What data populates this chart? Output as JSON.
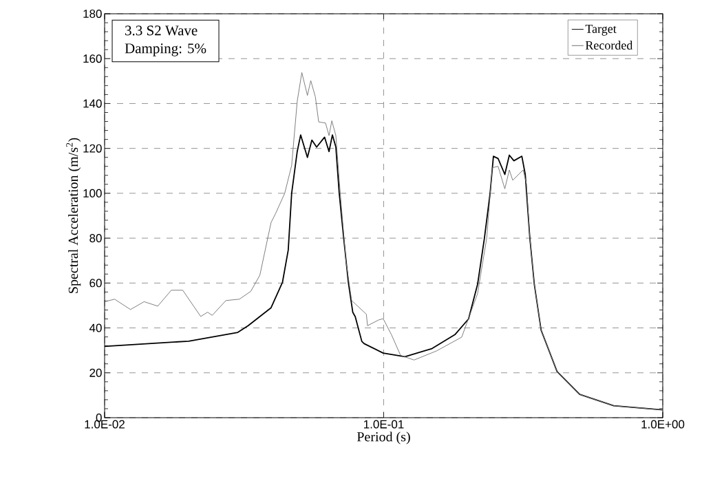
{
  "chart_data": {
    "type": "line",
    "xlabel": "Period (s)",
    "ylabel": "Spectral Acceleration (m/s$^{2}$)",
    "annotations": [
      "3.3 S2 Wave",
      "Damping: 5%"
    ],
    "log": "x",
    "grid": true,
    "legend": "top right",
    "xlim": [
      0.01,
      1
    ],
    "ylim": [
      0,
      180
    ],
    "xticks": [
      {
        "value": 0.01,
        "label": "1.0E-02"
      },
      {
        "value": 0.1,
        "label": "1.0E-01"
      },
      {
        "value": 1,
        "label": "1.0E+00"
      }
    ],
    "yticks": [
      0,
      20,
      40,
      60,
      80,
      100,
      120,
      140,
      160,
      180
    ],
    "series": [
      {
        "name": "Target",
        "color": "#000000",
        "x": [
          0.01,
          0.02,
          0.03,
          0.0327,
          0.0395,
          0.0434,
          0.0455,
          0.0468,
          0.049,
          0.0504,
          0.0533,
          0.0553,
          0.0575,
          0.0614,
          0.0637,
          0.0655,
          0.0674,
          0.0693,
          0.0719,
          0.0747,
          0.0775,
          0.0791,
          0.0835,
          0.0851,
          0.0996,
          0.1192,
          0.149,
          0.18,
          0.2014,
          0.217,
          0.2296,
          0.2406,
          0.2473,
          0.257,
          0.2717,
          0.282,
          0.2928,
          0.3127,
          0.3216,
          0.334,
          0.3466,
          0.3666,
          0.418,
          0.504,
          0.667,
          1.0
        ],
        "values": [
          31.8,
          34.1,
          38,
          41,
          49,
          60.4,
          74.7,
          100,
          118.6,
          126,
          116,
          123.7,
          120.6,
          125,
          118.6,
          126,
          120.6,
          100,
          80,
          60.4,
          47,
          45,
          34,
          33,
          28.8,
          27.2,
          30.8,
          37,
          44,
          59.4,
          80,
          100,
          116.5,
          115.5,
          108.4,
          117,
          114.5,
          116.5,
          108.4,
          80,
          59.4,
          39,
          20.6,
          10.4,
          5.3,
          3.5
        ]
      },
      {
        "name": "Recorded",
        "color": "#707070",
        "x": [
          0.01,
          0.01086,
          0.01238,
          0.01385,
          0.0155,
          0.01734,
          0.01905,
          0.0221,
          0.02339,
          0.0243,
          0.0272,
          0.0304,
          0.0334,
          0.036,
          0.0395,
          0.041,
          0.0442,
          0.0468,
          0.049,
          0.0509,
          0.0533,
          0.0548,
          0.0569,
          0.0585,
          0.0619,
          0.0637,
          0.0652,
          0.0674,
          0.0699,
          0.0733,
          0.0768,
          0.0867,
          0.0875,
          0.0961,
          0.0996,
          0.1066,
          0.1149,
          0.1285,
          0.155,
          0.1904,
          0.217,
          0.234,
          0.245,
          0.257,
          0.2717,
          0.282,
          0.29,
          0.316,
          0.3247,
          0.334,
          0.3466,
          0.3666,
          0.418,
          0.504,
          0.667,
          1.0
        ],
        "values": [
          51.7,
          52.8,
          48.2,
          51.7,
          49.7,
          56.8,
          56.8,
          45.1,
          47,
          45.6,
          52.2,
          52.8,
          56.3,
          63.5,
          87,
          91,
          100,
          112.4,
          141,
          153.8,
          143.6,
          150.2,
          143,
          131.8,
          131.3,
          125.7,
          132.3,
          125.7,
          100,
          69.6,
          52.2,
          46.1,
          41,
          43.6,
          44.1,
          37,
          27.8,
          25.7,
          29.8,
          35.9,
          55.3,
          80,
          111.4,
          112,
          102,
          110.4,
          105.8,
          110.4,
          104.3,
          80,
          59.4,
          39,
          20.6,
          10.4,
          5.3,
          3.5
        ]
      }
    ]
  }
}
